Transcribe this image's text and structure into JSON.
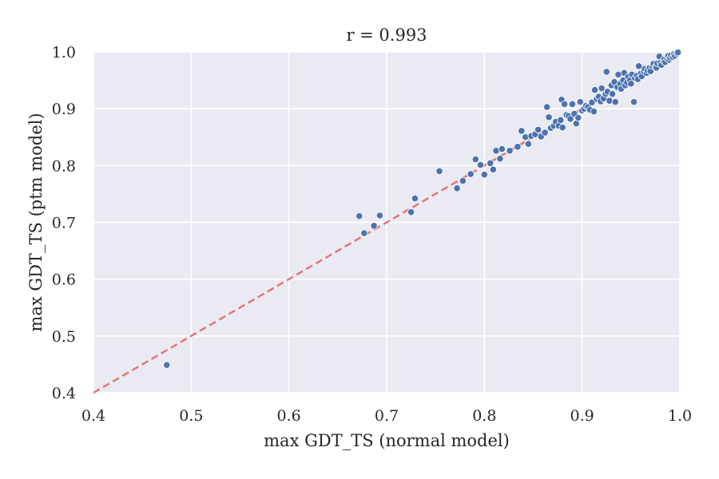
{
  "chart_data": {
    "type": "scatter",
    "title": "r = 0.993",
    "xlabel": "max GDT_TS (normal model)",
    "ylabel": "max GDT_TS (ptm model)",
    "xlim": [
      0.4,
      1.0
    ],
    "ylim": [
      0.4,
      1.0
    ],
    "xticks": [
      "0.4",
      "0.5",
      "0.6",
      "0.7",
      "0.8",
      "0.9",
      "1.0"
    ],
    "yticks": [
      "0.4",
      "0.5",
      "0.6",
      "0.7",
      "0.8",
      "0.9",
      "1.0"
    ],
    "grid": true,
    "reference_line": {
      "x": [
        0.4,
        1.0
      ],
      "y": [
        0.4,
        1.0
      ],
      "style": "dashed",
      "color": "#e87474"
    },
    "colors": {
      "points": "#4c72b0",
      "background": "#eaeaf2",
      "grid": "#ffffff"
    },
    "points": [
      [
        0.475,
        0.449
      ],
      [
        0.672,
        0.711
      ],
      [
        0.677,
        0.681
      ],
      [
        0.687,
        0.694
      ],
      [
        0.693,
        0.712
      ],
      [
        0.725,
        0.718
      ],
      [
        0.729,
        0.742
      ],
      [
        0.754,
        0.79
      ],
      [
        0.772,
        0.76
      ],
      [
        0.778,
        0.773
      ],
      [
        0.786,
        0.785
      ],
      [
        0.791,
        0.811
      ],
      [
        0.796,
        0.801
      ],
      [
        0.8,
        0.784
      ],
      [
        0.806,
        0.804
      ],
      [
        0.809,
        0.793
      ],
      [
        0.812,
        0.826
      ],
      [
        0.816,
        0.812
      ],
      [
        0.818,
        0.829
      ],
      [
        0.826,
        0.826
      ],
      [
        0.834,
        0.833
      ],
      [
        0.838,
        0.861
      ],
      [
        0.842,
        0.85
      ],
      [
        0.845,
        0.838
      ],
      [
        0.848,
        0.852
      ],
      [
        0.852,
        0.855
      ],
      [
        0.855,
        0.863
      ],
      [
        0.858,
        0.851
      ],
      [
        0.862,
        0.858
      ],
      [
        0.864,
        0.903
      ],
      [
        0.866,
        0.885
      ],
      [
        0.868,
        0.866
      ],
      [
        0.871,
        0.87
      ],
      [
        0.873,
        0.877
      ],
      [
        0.876,
        0.87
      ],
      [
        0.878,
        0.88
      ],
      [
        0.879,
        0.916
      ],
      [
        0.88,
        0.867
      ],
      [
        0.882,
        0.908
      ],
      [
        0.884,
        0.889
      ],
      [
        0.886,
        0.887
      ],
      [
        0.888,
        0.882
      ],
      [
        0.89,
        0.908
      ],
      [
        0.892,
        0.891
      ],
      [
        0.894,
        0.874
      ],
      [
        0.896,
        0.884
      ],
      [
        0.898,
        0.912
      ],
      [
        0.9,
        0.897
      ],
      [
        0.902,
        0.9
      ],
      [
        0.904,
        0.905
      ],
      [
        0.906,
        0.903
      ],
      [
        0.908,
        0.898
      ],
      [
        0.91,
        0.911
      ],
      [
        0.912,
        0.895
      ],
      [
        0.913,
        0.933
      ],
      [
        0.915,
        0.917
      ],
      [
        0.917,
        0.921
      ],
      [
        0.919,
        0.913
      ],
      [
        0.92,
        0.936
      ],
      [
        0.922,
        0.918
      ],
      [
        0.924,
        0.926
      ],
      [
        0.925,
        0.965
      ],
      [
        0.926,
        0.93
      ],
      [
        0.928,
        0.914
      ],
      [
        0.93,
        0.941
      ],
      [
        0.931,
        0.926
      ],
      [
        0.933,
        0.947
      ],
      [
        0.934,
        0.912
      ],
      [
        0.936,
        0.938
      ],
      [
        0.937,
        0.96
      ],
      [
        0.939,
        0.944
      ],
      [
        0.94,
        0.935
      ],
      [
        0.942,
        0.95
      ],
      [
        0.943,
        0.963
      ],
      [
        0.944,
        0.941
      ],
      [
        0.946,
        0.946
      ],
      [
        0.947,
        0.956
      ],
      [
        0.949,
        0.95
      ],
      [
        0.95,
        0.944
      ],
      [
        0.951,
        0.96
      ],
      [
        0.953,
        0.912
      ],
      [
        0.954,
        0.954
      ],
      [
        0.956,
        0.958
      ],
      [
        0.957,
        0.952
      ],
      [
        0.958,
        0.975
      ],
      [
        0.96,
        0.962
      ],
      [
        0.961,
        0.957
      ],
      [
        0.963,
        0.966
      ],
      [
        0.964,
        0.97
      ],
      [
        0.966,
        0.963
      ],
      [
        0.967,
        0.968
      ],
      [
        0.969,
        0.972
      ],
      [
        0.97,
        0.966
      ],
      [
        0.972,
        0.975
      ],
      [
        0.973,
        0.979
      ],
      [
        0.975,
        0.974
      ],
      [
        0.976,
        0.972
      ],
      [
        0.977,
        0.98
      ],
      [
        0.979,
        0.992
      ],
      [
        0.98,
        0.981
      ],
      [
        0.981,
        0.977
      ],
      [
        0.983,
        0.984
      ],
      [
        0.984,
        0.987
      ],
      [
        0.985,
        0.982
      ],
      [
        0.987,
        0.989
      ],
      [
        0.988,
        0.993
      ],
      [
        0.989,
        0.986
      ],
      [
        0.99,
        0.99
      ],
      [
        0.991,
        0.994
      ],
      [
        0.993,
        0.991
      ],
      [
        0.994,
        0.996
      ],
      [
        0.995,
        0.993
      ],
      [
        0.997,
        0.997
      ],
      [
        0.998,
        0.999
      ]
    ]
  }
}
